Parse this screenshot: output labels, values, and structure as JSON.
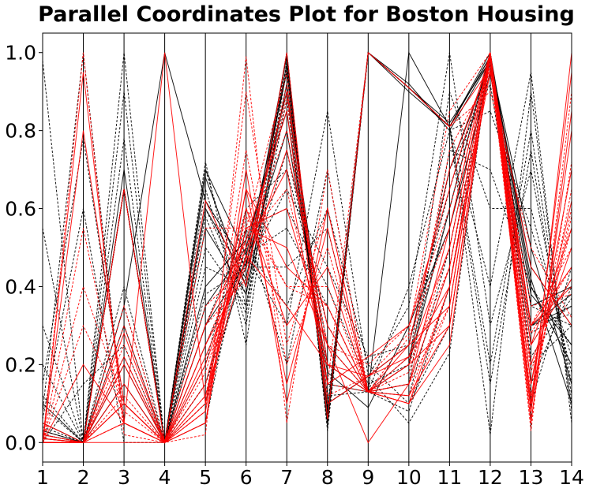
{
  "chart_data": {
    "type": "parallel_coordinates",
    "title": "Parallel Coordinates Plot for Boston Housing",
    "axes": [
      "1",
      "2",
      "3",
      "4",
      "5",
      "6",
      "7",
      "8",
      "9",
      "10",
      "11",
      "12",
      "13",
      "14"
    ],
    "ylim": [
      -0.05,
      1.05
    ],
    "yticks": [
      "0.0",
      "0.2",
      "0.4",
      "0.6",
      "0.8",
      "1.0"
    ],
    "ytick_values": [
      0.0,
      0.2,
      0.4,
      0.6,
      0.8,
      1.0
    ],
    "grid": "vertical axis lines only",
    "colors": {
      "class_a": "#000000",
      "class_b": "#ff0000"
    },
    "styles": [
      "solid",
      "dashed"
    ],
    "series": [
      {
        "color": "class_a",
        "style": "solid",
        "values": [
          0.0,
          0.0,
          0.35,
          1.0,
          0.62,
          0.45,
          0.99,
          0.05,
          1.0,
          0.91,
          0.81,
          1.0,
          0.4,
          0.2
        ]
      },
      {
        "color": "class_a",
        "style": "solid",
        "values": [
          0.02,
          0.0,
          0.65,
          0.0,
          0.7,
          0.48,
          0.95,
          0.08,
          1.0,
          0.9,
          0.81,
          0.99,
          0.38,
          0.25
        ]
      },
      {
        "color": "class_a",
        "style": "solid",
        "values": [
          0.05,
          0.0,
          0.65,
          0.0,
          0.6,
          0.42,
          0.97,
          0.06,
          1.0,
          0.92,
          0.8,
          0.98,
          0.45,
          0.3
        ]
      },
      {
        "color": "class_a",
        "style": "solid",
        "values": [
          0.1,
          0.0,
          0.65,
          0.0,
          0.68,
          0.4,
          1.0,
          0.05,
          1.0,
          0.91,
          0.82,
          0.98,
          0.5,
          0.15
        ]
      },
      {
        "color": "class_a",
        "style": "solid",
        "values": [
          0.01,
          0.0,
          0.3,
          0.0,
          0.4,
          0.52,
          0.85,
          0.15,
          0.13,
          0.2,
          0.6,
          1.0,
          0.3,
          0.35
        ]
      },
      {
        "color": "class_a",
        "style": "solid",
        "values": [
          0.0,
          0.0,
          0.15,
          0.0,
          0.35,
          0.5,
          0.9,
          0.1,
          0.17,
          0.25,
          0.7,
          0.97,
          0.35,
          0.4
        ]
      },
      {
        "color": "class_a",
        "style": "solid",
        "values": [
          0.03,
          0.0,
          0.7,
          0.0,
          0.55,
          0.38,
          0.92,
          0.2,
          0.13,
          1.0,
          0.81,
          0.99,
          0.42,
          0.1
        ]
      },
      {
        "color": "class_a",
        "style": "solid",
        "values": [
          0.0,
          0.0,
          0.2,
          0.0,
          0.3,
          0.46,
          0.8,
          0.18,
          0.09,
          0.3,
          0.55,
          0.95,
          0.3,
          0.38
        ]
      },
      {
        "color": "class_a",
        "style": "dashed",
        "values": [
          0.98,
          0.0,
          0.65,
          0.0,
          0.65,
          0.3,
          1.0,
          0.03,
          1.0,
          0.91,
          0.81,
          0.4,
          0.95,
          0.05
        ]
      },
      {
        "color": "class_a",
        "style": "dashed",
        "values": [
          0.55,
          0.0,
          0.65,
          0.0,
          0.72,
          0.25,
          0.98,
          0.04,
          1.0,
          0.91,
          0.81,
          0.02,
          0.9,
          0.08
        ]
      },
      {
        "color": "class_a",
        "style": "dashed",
        "values": [
          0.3,
          0.0,
          0.65,
          0.0,
          0.7,
          0.35,
          1.0,
          0.06,
          1.0,
          0.91,
          0.81,
          0.2,
          0.8,
          0.12
        ]
      },
      {
        "color": "class_a",
        "style": "dashed",
        "values": [
          0.15,
          0.78,
          0.1,
          0.0,
          0.1,
          0.48,
          0.3,
          0.85,
          0.17,
          0.05,
          0.23,
          1.0,
          0.1,
          0.45
        ]
      },
      {
        "color": "class_a",
        "style": "dashed",
        "values": [
          0.08,
          1.0,
          0.05,
          0.0,
          0.05,
          0.55,
          0.2,
          0.7,
          0.13,
          0.08,
          0.4,
          1.0,
          0.15,
          0.4
        ]
      },
      {
        "color": "class_a",
        "style": "dashed",
        "values": [
          0.06,
          0.6,
          0.0,
          0.0,
          0.15,
          0.5,
          0.35,
          0.6,
          0.2,
          0.1,
          0.3,
          0.99,
          0.2,
          0.3
        ]
      },
      {
        "color": "class_a",
        "style": "dashed",
        "values": [
          0.2,
          0.0,
          1.0,
          0.0,
          0.45,
          0.4,
          0.75,
          0.25,
          0.13,
          0.2,
          0.9,
          0.6,
          0.6,
          0.18
        ]
      },
      {
        "color": "class_a",
        "style": "dashed",
        "values": [
          0.12,
          0.0,
          0.78,
          0.0,
          0.5,
          0.35,
          0.88,
          0.1,
          0.17,
          0.35,
          1.0,
          0.3,
          0.7,
          0.15
        ]
      },
      {
        "color": "class_a",
        "style": "dashed",
        "values": [
          0.04,
          0.0,
          0.9,
          0.0,
          0.62,
          0.45,
          0.95,
          0.12,
          0.13,
          0.4,
          0.8,
          0.85,
          0.55,
          0.22
        ]
      },
      {
        "color": "class_a",
        "style": "dashed",
        "values": [
          0.0,
          0.15,
          0.25,
          0.0,
          0.2,
          0.6,
          0.7,
          0.3,
          0.13,
          0.15,
          0.45,
          1.0,
          0.25,
          0.42
        ]
      },
      {
        "color": "class_a",
        "style": "dashed",
        "values": [
          0.01,
          0.0,
          0.35,
          0.0,
          0.38,
          0.45,
          0.65,
          0.45,
          0.22,
          0.25,
          0.65,
          0.98,
          0.35,
          0.3
        ]
      },
      {
        "color": "class_a",
        "style": "dashed",
        "values": [
          0.02,
          0.0,
          0.4,
          0.0,
          0.3,
          0.55,
          0.6,
          0.4,
          0.15,
          0.2,
          0.7,
          0.92,
          0.28,
          0.35
        ]
      },
      {
        "color": "class_a",
        "style": "dashed",
        "values": [
          0.0,
          0.0,
          0.22,
          0.0,
          0.25,
          0.48,
          0.55,
          0.35,
          0.13,
          0.22,
          0.6,
          1.0,
          0.22,
          0.37
        ]
      },
      {
        "color": "class_a",
        "style": "dashed",
        "values": [
          0.03,
          0.0,
          0.65,
          0.0,
          0.6,
          0.38,
          0.9,
          0.2,
          0.13,
          0.15,
          0.75,
          0.7,
          0.4,
          0.25
        ]
      },
      {
        "color": "class_a",
        "style": "dashed",
        "values": [
          0.0,
          0.0,
          0.1,
          0.0,
          0.15,
          0.45,
          0.45,
          0.55,
          0.13,
          0.12,
          0.5,
          1.0,
          0.3,
          0.33
        ]
      },
      {
        "color": "class_a",
        "style": "dashed",
        "values": [
          0.09,
          0.0,
          0.65,
          0.0,
          0.58,
          0.33,
          0.96,
          0.09,
          1.0,
          0.91,
          0.81,
          0.15,
          0.75,
          0.1
        ]
      },
      {
        "color": "class_b",
        "style": "solid",
        "values": [
          0.0,
          0.0,
          0.05,
          1.0,
          0.1,
          0.55,
          0.6,
          0.25,
          0.13,
          0.25,
          0.35,
          1.0,
          0.25,
          0.55
        ]
      },
      {
        "color": "class_b",
        "style": "solid",
        "values": [
          0.01,
          0.0,
          0.1,
          0.0,
          0.12,
          0.48,
          0.35,
          0.2,
          0.13,
          0.2,
          0.3,
          0.99,
          0.15,
          0.7
        ]
      },
      {
        "color": "class_b",
        "style": "solid",
        "values": [
          0.0,
          0.0,
          0.2,
          0.0,
          0.3,
          0.52,
          0.85,
          0.1,
          0.17,
          0.22,
          0.5,
          1.0,
          0.3,
          0.45
        ]
      },
      {
        "color": "class_b",
        "style": "solid",
        "values": [
          0.05,
          0.0,
          0.65,
          0.0,
          0.62,
          0.4,
          1.0,
          0.06,
          1.0,
          0.91,
          0.81,
          0.96,
          0.45,
          0.3
        ]
      },
      {
        "color": "class_b",
        "style": "solid",
        "values": [
          0.0,
          0.0,
          0.0,
          0.0,
          0.05,
          0.65,
          0.45,
          0.35,
          0.13,
          0.15,
          0.45,
          1.0,
          0.1,
          0.95
        ]
      },
      {
        "color": "class_b",
        "style": "solid",
        "values": [
          0.0,
          0.2,
          0.05,
          0.0,
          0.08,
          0.6,
          0.3,
          0.45,
          0.13,
          0.1,
          0.4,
          0.99,
          0.08,
          1.0
        ]
      },
      {
        "color": "class_b",
        "style": "solid",
        "values": [
          0.0,
          0.0,
          0.15,
          0.0,
          0.2,
          0.5,
          0.7,
          0.15,
          0.22,
          0.3,
          0.65,
          1.0,
          0.2,
          0.5
        ]
      },
      {
        "color": "class_b",
        "style": "solid",
        "values": [
          0.02,
          0.0,
          0.28,
          0.0,
          0.25,
          0.45,
          0.75,
          0.3,
          0.13,
          0.22,
          0.4,
          0.95,
          0.3,
          0.4
        ]
      },
      {
        "color": "class_b",
        "style": "solid",
        "values": [
          0.0,
          0.0,
          0.1,
          0.0,
          0.15,
          0.55,
          0.5,
          0.25,
          0.0,
          0.15,
          0.55,
          1.0,
          0.15,
          0.62
        ]
      },
      {
        "color": "class_b",
        "style": "solid",
        "values": [
          0.01,
          0.0,
          0.22,
          0.0,
          0.22,
          0.47,
          0.9,
          0.2,
          0.17,
          0.25,
          0.7,
          0.98,
          0.25,
          0.42
        ]
      },
      {
        "color": "class_b",
        "style": "solid",
        "values": [
          0.0,
          0.95,
          0.05,
          0.0,
          0.05,
          0.7,
          0.1,
          0.6,
          0.13,
          0.1,
          0.25,
          1.0,
          0.05,
          0.85
        ]
      },
      {
        "color": "class_b",
        "style": "solid",
        "values": [
          0.0,
          0.8,
          0.1,
          0.0,
          0.1,
          0.65,
          0.15,
          0.55,
          0.13,
          0.12,
          0.3,
          0.99,
          0.08,
          0.8
        ]
      },
      {
        "color": "class_b",
        "style": "dashed",
        "values": [
          0.0,
          0.4,
          0.1,
          0.0,
          0.1,
          0.75,
          0.2,
          0.5,
          0.13,
          0.15,
          0.35,
          1.0,
          0.1,
          0.65
        ]
      },
      {
        "color": "class_b",
        "style": "dashed",
        "values": [
          0.0,
          0.55,
          0.05,
          0.0,
          0.08,
          0.9,
          0.25,
          0.6,
          0.13,
          0.2,
          0.45,
          0.97,
          0.06,
          0.72
        ]
      },
      {
        "color": "class_b",
        "style": "dashed",
        "values": [
          0.0,
          1.0,
          0.02,
          0.0,
          0.02,
          0.99,
          0.05,
          0.7,
          0.13,
          0.1,
          0.35,
          1.0,
          0.03,
          0.9
        ]
      },
      {
        "color": "class_b",
        "style": "dashed",
        "values": [
          0.0,
          0.0,
          0.25,
          0.0,
          0.25,
          0.5,
          0.8,
          0.25,
          0.2,
          0.3,
          0.6,
          0.99,
          0.3,
          0.5
        ]
      },
      {
        "color": "class_b",
        "style": "dashed",
        "values": [
          0.01,
          0.0,
          0.35,
          0.0,
          0.3,
          0.42,
          0.88,
          0.15,
          0.13,
          0.2,
          0.75,
          0.95,
          0.35,
          0.38
        ]
      },
      {
        "color": "class_b",
        "style": "dashed",
        "values": [
          0.0,
          0.0,
          0.05,
          0.0,
          0.05,
          0.6,
          0.4,
          0.4,
          0.13,
          0.18,
          0.5,
          1.0,
          0.12,
          0.58
        ]
      },
      {
        "color": "class_b",
        "style": "dashed",
        "values": [
          0.02,
          0.0,
          0.65,
          0.0,
          0.55,
          0.55,
          0.95,
          0.15,
          1.0,
          0.91,
          0.81,
          0.9,
          0.5,
          0.32
        ]
      },
      {
        "color": "class_b",
        "style": "dashed",
        "values": [
          0.0,
          0.0,
          0.12,
          0.0,
          0.18,
          0.52,
          0.65,
          0.2,
          0.13,
          0.27,
          0.55,
          1.0,
          0.18,
          0.55
        ]
      },
      {
        "color": "class_b",
        "style": "dashed",
        "values": [
          0.0,
          0.3,
          0.08,
          0.0,
          0.12,
          0.58,
          0.4,
          0.35,
          0.13,
          0.12,
          0.4,
          0.96,
          0.12,
          0.6
        ]
      },
      {
        "color": "class_b",
        "style": "dashed",
        "values": [
          0.0,
          0.0,
          0.3,
          0.0,
          0.35,
          0.45,
          0.92,
          0.12,
          0.17,
          0.28,
          0.85,
          1.0,
          0.28,
          0.45
        ]
      }
    ]
  }
}
